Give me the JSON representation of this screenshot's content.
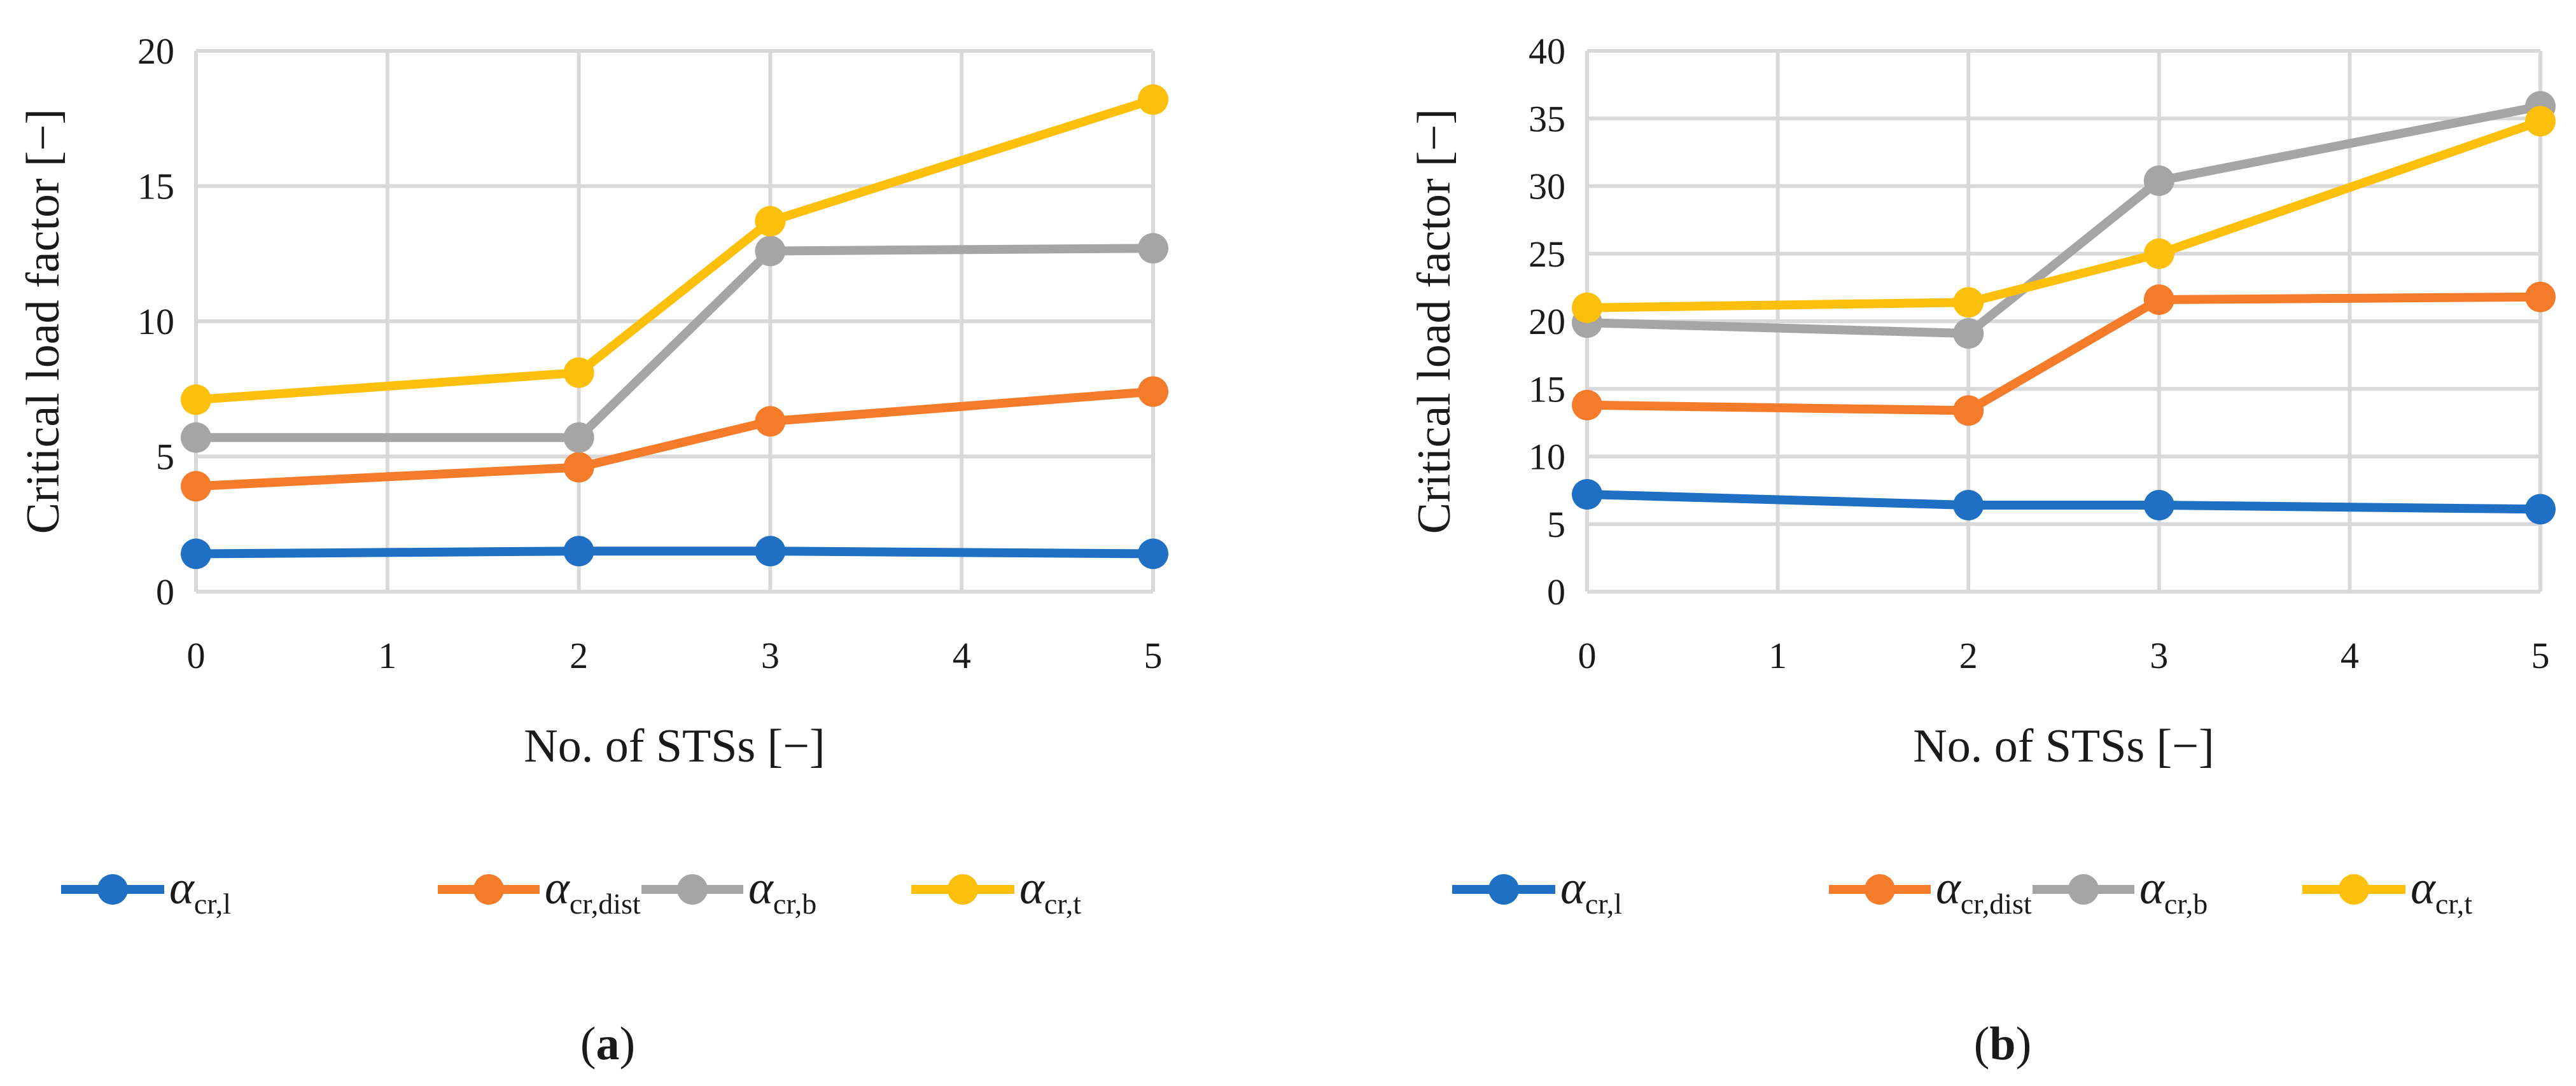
{
  "chart_data": [
    {
      "type": "line",
      "panel_label_open": "(",
      "panel_label_letter": "a",
      "panel_label_close": ")",
      "xlabel": "No. of STSs [−]",
      "ylabel": "Critical load factor [−]",
      "xlim": [
        0,
        5
      ],
      "ylim": [
        0,
        20
      ],
      "xticks": [
        "0",
        "1",
        "2",
        "3",
        "4",
        "5"
      ],
      "yticks": [
        "0",
        "5",
        "10",
        "15",
        "20"
      ],
      "grid": true,
      "legend_position": "bottom",
      "x": [
        0,
        2,
        3,
        5
      ],
      "series": [
        {
          "symbol": "α",
          "subscript": "cr,l",
          "color": "#1f6fc4",
          "values": [
            1.4,
            1.5,
            1.5,
            1.4
          ]
        },
        {
          "symbol": "α",
          "subscript": "cr,dist",
          "color": "#f47b2a",
          "values": [
            3.9,
            4.6,
            6.3,
            7.4
          ]
        },
        {
          "symbol": "α",
          "subscript": "cr,b",
          "color": "#a5a5a5",
          "values": [
            5.7,
            5.7,
            12.6,
            12.7
          ]
        },
        {
          "symbol": "α",
          "subscript": "cr,t",
          "color": "#fcc00c",
          "values": [
            7.1,
            8.1,
            13.7,
            18.2
          ]
        }
      ]
    },
    {
      "type": "line",
      "panel_label_open": "(",
      "panel_label_letter": "b",
      "panel_label_close": ")",
      "xlabel": "No. of STSs [−]",
      "ylabel": "Critical load factor [−]",
      "xlim": [
        0,
        5
      ],
      "ylim": [
        0,
        40
      ],
      "xticks": [
        "0",
        "1",
        "2",
        "3",
        "4",
        "5"
      ],
      "yticks": [
        "0",
        "5",
        "10",
        "15",
        "20",
        "25",
        "30",
        "35",
        "40"
      ],
      "grid": true,
      "legend_position": "bottom",
      "x": [
        0,
        2,
        3,
        5
      ],
      "series": [
        {
          "symbol": "α",
          "subscript": "cr,l",
          "color": "#1f6fc4",
          "values": [
            7.2,
            6.4,
            6.4,
            6.1
          ]
        },
        {
          "symbol": "α",
          "subscript": "cr,dist",
          "color": "#f47b2a",
          "values": [
            13.8,
            13.4,
            21.6,
            21.8
          ]
        },
        {
          "symbol": "α",
          "subscript": "cr,b",
          "color": "#a5a5a5",
          "values": [
            19.9,
            19.1,
            30.4,
            35.9
          ]
        },
        {
          "symbol": "α",
          "subscript": "cr,t",
          "color": "#fcc00c",
          "values": [
            21.0,
            21.4,
            25.0,
            34.8
          ]
        }
      ]
    }
  ]
}
